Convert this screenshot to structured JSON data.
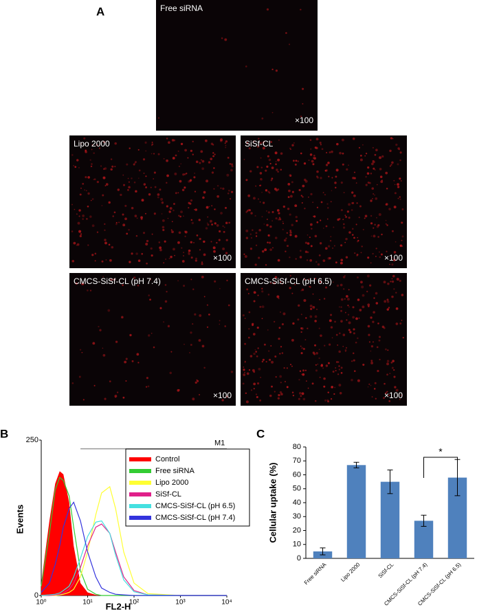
{
  "panel_a": {
    "label": "A",
    "images": [
      {
        "title": "Free siRNA",
        "magnification": "×100"
      },
      {
        "title": "Lipo 2000",
        "magnification": "×100"
      },
      {
        "title": "SiSf-CL",
        "magnification": "×100"
      },
      {
        "title": "CMCS-SiSf-CL (pH 7.4)",
        "magnification": "×100"
      },
      {
        "title": "CMCS-SiSf-CL (pH 6.5)",
        "magnification": "×100"
      }
    ]
  },
  "chart_data": [
    {
      "type": "line",
      "panel_label": "B",
      "x_label": "FL2-H",
      "y_label": "Events",
      "xscale": "log",
      "xlim": [
        1,
        10000
      ],
      "ylim": [
        0,
        250
      ],
      "xticks": [
        {
          "value": 1,
          "label": "10⁰"
        },
        {
          "value": 10,
          "label": "10¹"
        },
        {
          "value": 100,
          "label": "10²"
        },
        {
          "value": 1000,
          "label": "10³"
        },
        {
          "value": 10000,
          "label": "10⁴"
        }
      ],
      "yticks": [
        0,
        250
      ],
      "gate": {
        "label": "M1",
        "range": [
          7,
          10000
        ],
        "y": 236
      },
      "x": [
        1,
        1.5,
        2,
        2.5,
        3,
        4,
        5,
        7,
        10,
        15,
        20,
        30,
        40,
        60,
        100,
        200,
        1000,
        10000
      ],
      "series": [
        {
          "name": "Control",
          "color": "#ff0000",
          "filled": true,
          "values": [
            20,
            120,
            180,
            200,
            195,
            150,
            80,
            20,
            5,
            1,
            0,
            0,
            0,
            0,
            0,
            0,
            0,
            0
          ]
        },
        {
          "name": "Free siRNA",
          "color": "#33cc33",
          "values": [
            15,
            100,
            170,
            190,
            185,
            160,
            110,
            40,
            10,
            2,
            0,
            0,
            0,
            0,
            0,
            0,
            0,
            0
          ]
        },
        {
          "name": "Lipo 2000",
          "color": "#ffff33",
          "values": [
            0,
            0,
            0,
            1,
            2,
            5,
            10,
            30,
            70,
            130,
            165,
            175,
            140,
            70,
            20,
            3,
            0,
            0
          ]
        },
        {
          "name": "SiSf-CL",
          "color": "#e0208a",
          "values": [
            0,
            0,
            1,
            2,
            4,
            10,
            20,
            45,
            80,
            110,
            115,
            100,
            70,
            30,
            8,
            1,
            0,
            0
          ]
        },
        {
          "name": "CMCS-SiSf-CL (pH 6.5)",
          "color": "#44e0e0",
          "values": [
            0,
            1,
            2,
            4,
            8,
            15,
            30,
            60,
            95,
            118,
            120,
            100,
            65,
            25,
            6,
            1,
            0,
            0
          ]
        },
        {
          "name": "CMCS-SiSf-CL (pH 7.4)",
          "color": "#3333dd",
          "values": [
            5,
            20,
            50,
            80,
            110,
            140,
            150,
            120,
            70,
            30,
            12,
            5,
            2,
            1,
            0,
            0,
            0,
            0
          ]
        }
      ]
    },
    {
      "type": "bar",
      "panel_label": "C",
      "y_label": "Cellular uptake (%)",
      "color": "#4f81bd",
      "categories": [
        "Free siRNA",
        "Lipo 2000",
        "SiSf-CL",
        "CMCS-SiSf-CL (pH 7.4)",
        "CMCS-SiSf-CL (pH 6.5)"
      ],
      "values": [
        5,
        67,
        55,
        27,
        58
      ],
      "errors": [
        2.5,
        2,
        8.5,
        4,
        13
      ],
      "ylim": [
        0,
        80
      ],
      "yticks": [
        0,
        10,
        20,
        30,
        40,
        50,
        60,
        70,
        80
      ],
      "annotation": "*"
    }
  ]
}
